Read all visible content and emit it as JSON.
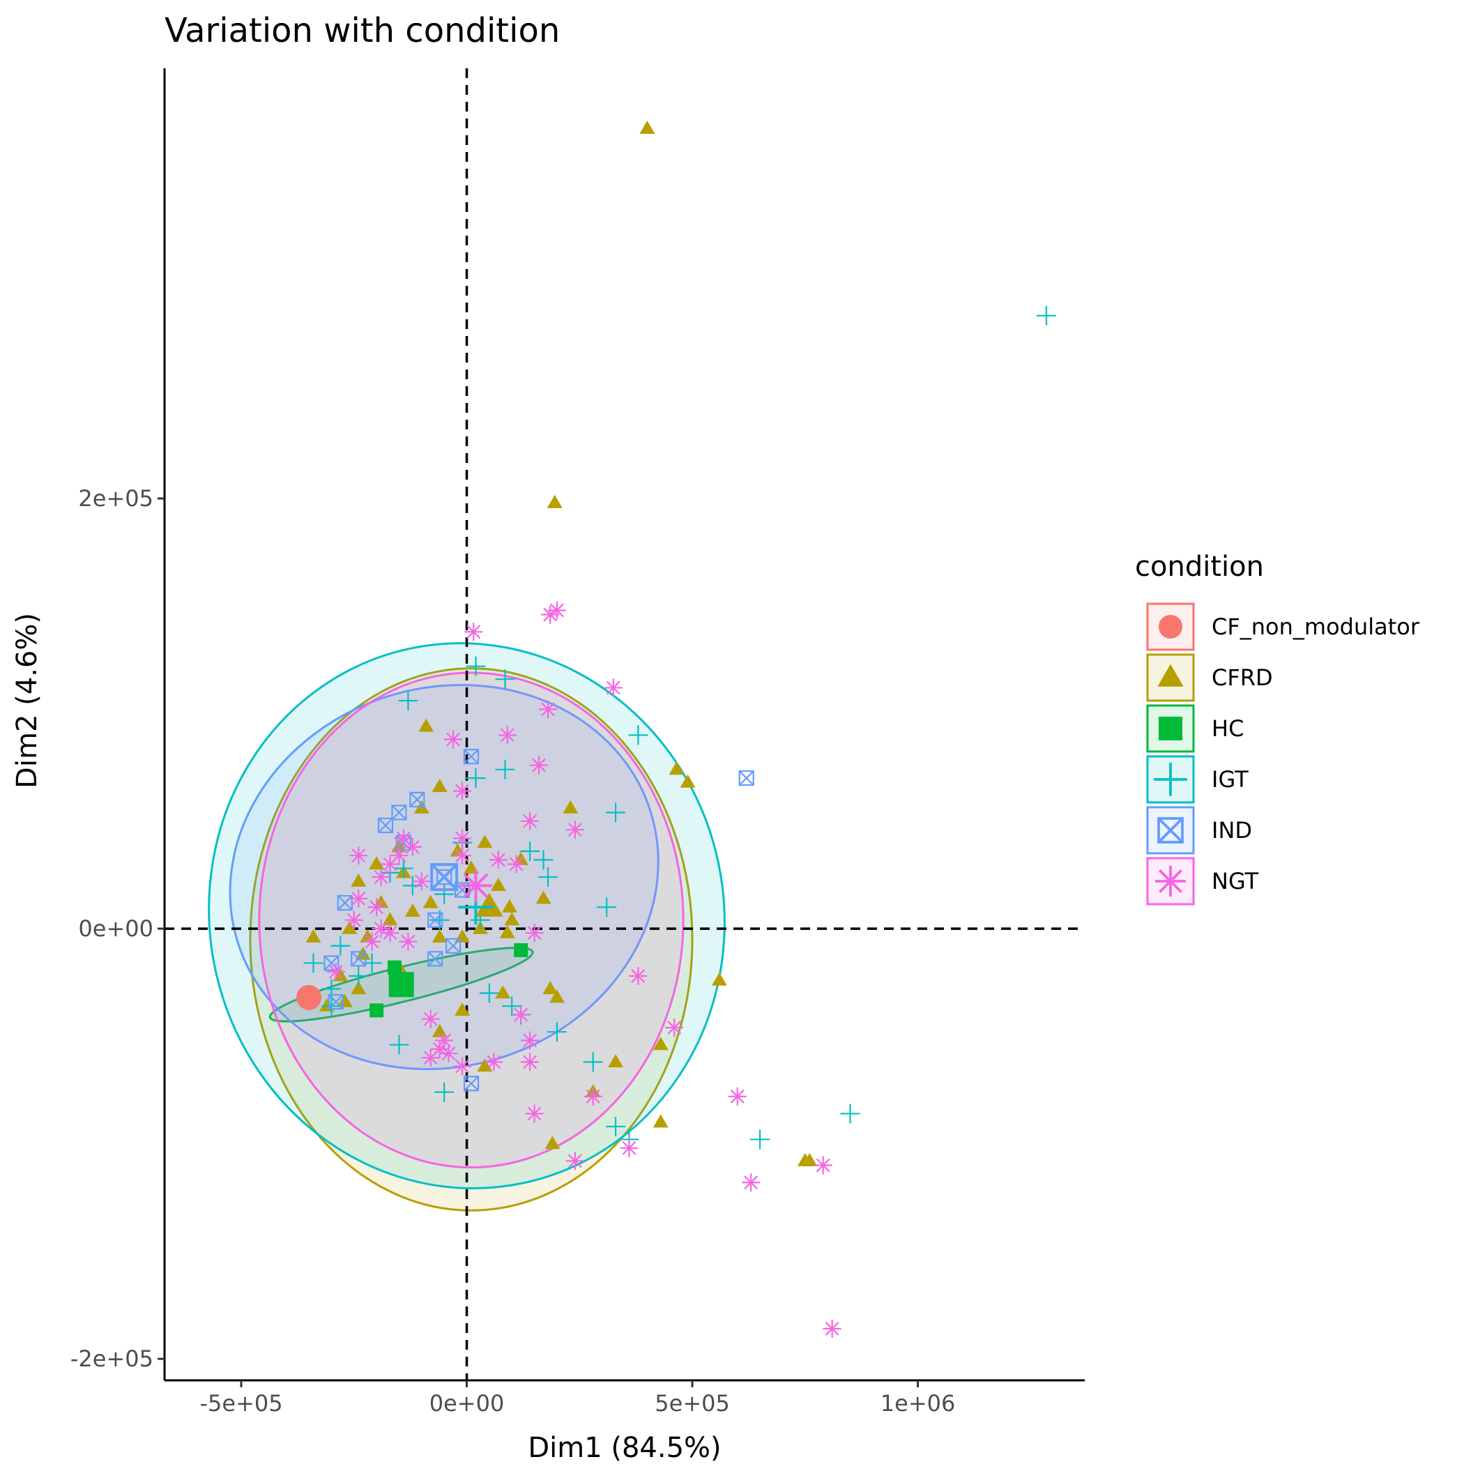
{
  "chart_data": {
    "type": "scatter",
    "title": "Variation with condition",
    "xlabel": "Dim1 (84.5%)",
    "ylabel": "Dim2 (4.6%)",
    "xlim": [
      -670000,
      1370000
    ],
    "ylim": [
      -210000,
      400000
    ],
    "x_ticks": [
      {
        "value": -500000,
        "label": "-5e+05"
      },
      {
        "value": 0,
        "label": "0e+00"
      },
      {
        "value": 500000,
        "label": "5e+05"
      },
      {
        "value": 1000000,
        "label": "1e+06"
      }
    ],
    "y_ticks": [
      {
        "value": -200000,
        "label": "-2e+05"
      },
      {
        "value": 0,
        "label": "0e+00"
      },
      {
        "value": 200000,
        "label": "2e+05"
      }
    ],
    "grid": false,
    "reference_lines": {
      "x": 0,
      "y": 0,
      "style": "dashed"
    },
    "legend": {
      "title": "condition",
      "position": "right"
    },
    "series": [
      {
        "name": "CF_non_modulator",
        "color": "#F8766D",
        "shape": "circle",
        "points": [
          [
            -350000,
            -32000
          ]
        ],
        "centroid": [
          -350000,
          -32000
        ],
        "ellipse": null
      },
      {
        "name": "CFRD",
        "color": "#B79F00",
        "shape": "triangle",
        "points": [
          [
            400000,
            372000
          ],
          [
            195000,
            198000
          ],
          [
            -90000,
            94000
          ],
          [
            -60000,
            66000
          ],
          [
            465000,
            74000
          ],
          [
            490000,
            68000
          ],
          [
            -100000,
            56000
          ],
          [
            230000,
            56000
          ],
          [
            40000,
            40000
          ],
          [
            -150000,
            38000
          ],
          [
            -20000,
            36000
          ],
          [
            120000,
            32000
          ],
          [
            -200000,
            30000
          ],
          [
            10000,
            28000
          ],
          [
            -140000,
            26000
          ],
          [
            -240000,
            22000
          ],
          [
            70000,
            20000
          ],
          [
            170000,
            14000
          ],
          [
            -190000,
            12000
          ],
          [
            -80000,
            12000
          ],
          [
            95000,
            10000
          ],
          [
            -120000,
            8000
          ],
          [
            -170000,
            4000
          ],
          [
            100000,
            4000
          ],
          [
            -260000,
            0
          ],
          [
            30000,
            0
          ],
          [
            -340000,
            -4000
          ],
          [
            90000,
            -2000
          ],
          [
            -220000,
            -4000
          ],
          [
            -60000,
            -4000
          ],
          [
            -10000,
            -4000
          ],
          [
            -230000,
            -12000
          ],
          [
            -150000,
            -18000
          ],
          [
            -280000,
            -22000
          ],
          [
            560000,
            -24000
          ],
          [
            185000,
            -28000
          ],
          [
            80000,
            -30000
          ],
          [
            -240000,
            -28000
          ],
          [
            -270000,
            -34000
          ],
          [
            200000,
            -32000
          ],
          [
            -310000,
            -36000
          ],
          [
            -10000,
            -38000
          ],
          [
            -60000,
            -48000
          ],
          [
            430000,
            -54000
          ],
          [
            330000,
            -62000
          ],
          [
            40000,
            -64000
          ],
          [
            280000,
            -76000
          ],
          [
            430000,
            -90000
          ],
          [
            190000,
            -100000
          ],
          [
            760000,
            -108000
          ],
          [
            750000,
            -108000
          ]
        ],
        "centroid": [
          50000,
          10000
        ],
        "ellipse": {
          "cx": 10000,
          "cy": -5000,
          "rx": 490000,
          "ry": 126000,
          "angle": 0
        }
      },
      {
        "name": "HC",
        "color": "#00BA38",
        "shape": "square",
        "points": [
          [
            120000,
            -10000
          ],
          [
            -160000,
            -18000
          ],
          [
            -140000,
            -26000
          ],
          [
            -200000,
            -38000
          ]
        ],
        "centroid": [
          -145000,
          -26000
        ],
        "ellipse": {
          "cx": -145000,
          "cy": -26000,
          "rx": 300000,
          "ry": 8000,
          "angle": 14
        }
      },
      {
        "name": "IGT",
        "color": "#00BFC4",
        "shape": "plus",
        "points": [
          [
            1285000,
            285000
          ],
          [
            20000,
            122000
          ],
          [
            85000,
            116000
          ],
          [
            -130000,
            106000
          ],
          [
            380000,
            90000
          ],
          [
            20000,
            70000
          ],
          [
            85000,
            74000
          ],
          [
            330000,
            54000
          ],
          [
            -10000,
            40000
          ],
          [
            140000,
            36000
          ],
          [
            170000,
            32000
          ],
          [
            180000,
            24000
          ],
          [
            -170000,
            26000
          ],
          [
            -140000,
            28000
          ],
          [
            -120000,
            20000
          ],
          [
            -50000,
            16000
          ],
          [
            310000,
            10000
          ],
          [
            30000,
            4000
          ],
          [
            -60000,
            4000
          ],
          [
            -280000,
            -8000
          ],
          [
            -340000,
            -16000
          ],
          [
            -210000,
            -16000
          ],
          [
            -240000,
            -22000
          ],
          [
            -300000,
            -28000
          ],
          [
            50000,
            -30000
          ],
          [
            100000,
            -36000
          ],
          [
            120000,
            -40000
          ],
          [
            -300000,
            -36000
          ],
          [
            200000,
            -48000
          ],
          [
            -150000,
            -54000
          ],
          [
            280000,
            -62000
          ],
          [
            -50000,
            -76000
          ],
          [
            330000,
            -92000
          ],
          [
            360000,
            -98000
          ],
          [
            650000,
            -98000
          ],
          [
            850000,
            -86000
          ]
        ],
        "centroid": [
          20000,
          10000
        ],
        "ellipse": {
          "cx": 0,
          "cy": 6000,
          "rx": 570000,
          "ry": 127000,
          "angle": 12
        }
      },
      {
        "name": "IND",
        "color": "#619CFF",
        "shape": "box-x",
        "points": [
          [
            10000,
            80000
          ],
          [
            620000,
            70000
          ],
          [
            -110000,
            60000
          ],
          [
            -150000,
            54000
          ],
          [
            -180000,
            48000
          ],
          [
            -140000,
            40000
          ],
          [
            -50000,
            24000
          ],
          [
            -10000,
            18000
          ],
          [
            -270000,
            12000
          ],
          [
            -70000,
            4000
          ],
          [
            -30000,
            -8000
          ],
          [
            -300000,
            -16000
          ],
          [
            -240000,
            -14000
          ],
          [
            -70000,
            -14000
          ],
          [
            -290000,
            -34000
          ],
          [
            10000,
            -72000
          ]
        ],
        "centroid": [
          -50000,
          24000
        ],
        "ellipse": {
          "cx": -50000,
          "cy": 24000,
          "rx": 480000,
          "ry": 88000,
          "angle": 18
        }
      },
      {
        "name": "NGT",
        "color": "#F564E3",
        "shape": "asterisk",
        "points": [
          [
            200000,
            148000
          ],
          [
            185000,
            146000
          ],
          [
            15000,
            138000
          ],
          [
            325000,
            112000
          ],
          [
            180000,
            102000
          ],
          [
            90000,
            90000
          ],
          [
            -30000,
            88000
          ],
          [
            160000,
            76000
          ],
          [
            -10000,
            64000
          ],
          [
            140000,
            50000
          ],
          [
            240000,
            46000
          ],
          [
            -10000,
            42000
          ],
          [
            -140000,
            42000
          ],
          [
            -240000,
            34000
          ],
          [
            -150000,
            34000
          ],
          [
            -120000,
            38000
          ],
          [
            -10000,
            34000
          ],
          [
            70000,
            32000
          ],
          [
            110000,
            30000
          ],
          [
            -170000,
            30000
          ],
          [
            -190000,
            24000
          ],
          [
            -100000,
            22000
          ],
          [
            -240000,
            14000
          ],
          [
            -200000,
            10000
          ],
          [
            -250000,
            4000
          ],
          [
            -190000,
            0
          ],
          [
            -170000,
            -2000
          ],
          [
            -210000,
            -6000
          ],
          [
            -130000,
            -6000
          ],
          [
            150000,
            -2000
          ],
          [
            -290000,
            -20000
          ],
          [
            380000,
            -22000
          ],
          [
            120000,
            -40000
          ],
          [
            -80000,
            -42000
          ],
          [
            460000,
            -46000
          ],
          [
            -50000,
            -52000
          ],
          [
            140000,
            -52000
          ],
          [
            -60000,
            -56000
          ],
          [
            -40000,
            -58000
          ],
          [
            -80000,
            -60000
          ],
          [
            60000,
            -62000
          ],
          [
            140000,
            -62000
          ],
          [
            -10000,
            -64000
          ],
          [
            280000,
            -78000
          ],
          [
            600000,
            -78000
          ],
          [
            150000,
            -86000
          ],
          [
            360000,
            -102000
          ],
          [
            240000,
            -108000
          ],
          [
            790000,
            -110000
          ],
          [
            630000,
            -118000
          ],
          [
            810000,
            -186000
          ]
        ],
        "centroid": [
          20000,
          20000
        ],
        "ellipse": {
          "cx": 10000,
          "cy": 4000,
          "rx": 470000,
          "ry": 115000,
          "angle": 0
        }
      }
    ]
  }
}
